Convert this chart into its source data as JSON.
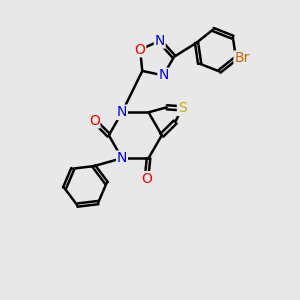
{
  "background_color": "#e8e8e8",
  "atom_colors": {
    "C": "#000000",
    "N": "#0000ff",
    "O": "#ff0000",
    "S": "#c8b400",
    "Br": "#cc6600"
  },
  "bond_color": "#000000",
  "bond_width": 1.8,
  "font_size": 10
}
